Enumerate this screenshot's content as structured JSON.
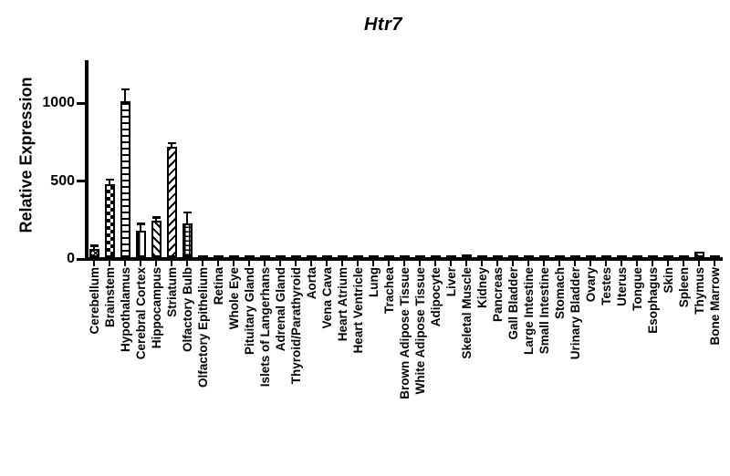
{
  "figure": {
    "background_color": "#ffffff",
    "ink_color": "#000000"
  },
  "chart_data": {
    "type": "bar",
    "title": "Htr7",
    "xlabel": "",
    "ylabel": "Relative Expression",
    "ylim": [
      0,
      1275
    ],
    "yticks": [
      0,
      500,
      1000
    ],
    "grid": false,
    "legend": false,
    "bar_style": "black outline, white fill with black hatch patterns; error bars on major bars",
    "categories": [
      "Cerebellum",
      "Brainstem",
      "Hypothalamus",
      "Cerebral Cortex",
      "Hippocampus",
      "Striatum",
      "Olfactory Bulb",
      "Olfactory Epithelium",
      "Retina",
      "Whole Eye",
      "Pituitary Gland",
      "Islets of Langerhans",
      "Adrenal Gland",
      "Thyroid/Parathyroid",
      "Aorta",
      "Vena Cava",
      "Heart Atrium",
      "Heart Ventricle",
      "Lung",
      "Trachea",
      "Brown Adipose Tissue",
      "White Adipose Tissue",
      "Adipocyte",
      "Liver",
      "Skeletal Muscle",
      "Kidney",
      "Pancreas",
      "Gall Bladder",
      "Large Intestine",
      "Small Intestine",
      "Stomach",
      "Urinary Bladder",
      "Ovary",
      "Testes",
      "Uterus",
      "Tongue",
      "Esophagus",
      "Skin",
      "Spleen",
      "Thymus",
      "Bone Marrow"
    ],
    "values": [
      55,
      465,
      1000,
      170,
      235,
      705,
      215,
      8,
      12,
      8,
      12,
      8,
      6,
      5,
      8,
      14,
      8,
      14,
      10,
      8,
      14,
      10,
      8,
      5,
      16,
      8,
      5,
      6,
      8,
      8,
      6,
      10,
      6,
      12,
      5,
      5,
      8,
      5,
      14,
      35,
      2
    ],
    "errors": [
      12,
      25,
      70,
      35,
      12,
      18,
      65,
      0,
      0,
      0,
      0,
      0,
      0,
      0,
      0,
      0,
      0,
      0,
      0,
      0,
      0,
      0,
      0,
      0,
      0,
      0,
      0,
      0,
      0,
      0,
      0,
      0,
      0,
      0,
      0,
      0,
      0,
      0,
      0,
      0,
      0
    ],
    "patterns": [
      "crosshatch",
      "checker",
      "hlines",
      "vlines",
      "diag-up",
      "diag-down",
      "grid",
      "solid",
      "solid",
      "solid",
      "solid",
      "solid",
      "solid",
      "solid",
      "solid",
      "solid",
      "solid",
      "solid",
      "solid",
      "solid",
      "solid",
      "solid",
      "solid",
      "solid",
      "solid",
      "solid",
      "solid",
      "solid",
      "solid",
      "solid",
      "solid",
      "solid",
      "solid",
      "solid",
      "solid",
      "solid",
      "solid",
      "solid",
      "solid",
      "diag-up",
      "solid"
    ]
  }
}
